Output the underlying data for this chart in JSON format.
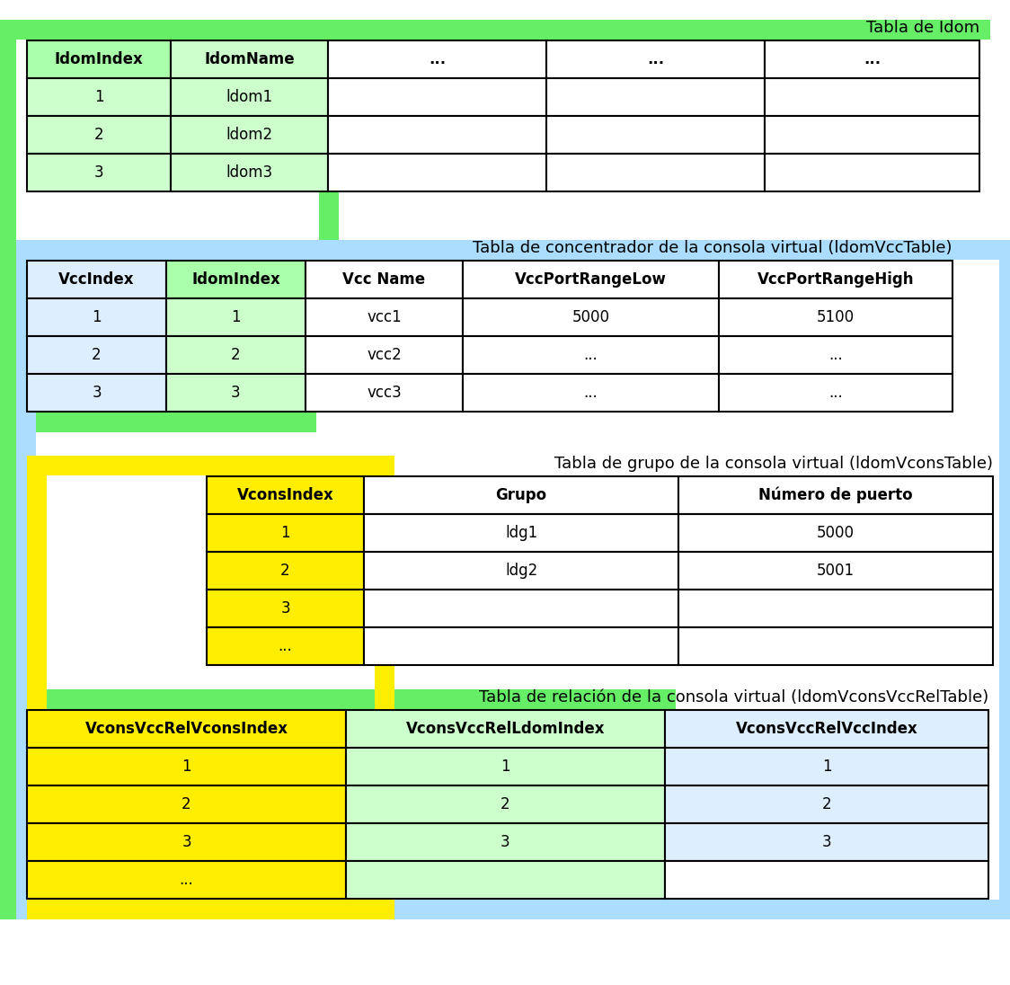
{
  "bg_color": "#ffffff",
  "title_fontsize": 13,
  "cell_fontsize": 12,
  "header_fontsize": 12,
  "table1": {
    "title": "Tabla de Idom",
    "headers": [
      "IdomIndex",
      "IdomName",
      "...",
      "...",
      "..."
    ],
    "header_bg": "#aaffaa",
    "rows": [
      [
        "1",
        "ldom1",
        "",
        "",
        ""
      ],
      [
        "2",
        "ldom2",
        "",
        "",
        ""
      ],
      [
        "3",
        "ldom3",
        "",
        "",
        ""
      ]
    ],
    "col_colors": [
      "#aaffaa",
      "#ccffcc",
      "#ffffff",
      "#ffffff",
      "#ffffff"
    ],
    "row_col_colors": [
      [
        "#ccffcc",
        "#ccffcc",
        "#ffffff",
        "#ffffff",
        "#ffffff"
      ],
      [
        "#ccffcc",
        "#ccffcc",
        "#ffffff",
        "#ffffff",
        "#ffffff"
      ],
      [
        "#ccffcc",
        "#ccffcc",
        "#ffffff",
        "#ffffff",
        "#ffffff"
      ]
    ]
  },
  "table2": {
    "title": "Tabla de concentrador de la consola virtual (ldomVccTable)",
    "headers": [
      "VccIndex",
      "IdomIndex",
      "Vcc Name",
      "VccPortRangeLow",
      "VccPortRangeHigh"
    ],
    "header_bg": "#ddeeff",
    "rows": [
      [
        "1",
        "1",
        "vcc1",
        "5000",
        "5100"
      ],
      [
        "2",
        "2",
        "vcc2",
        "...",
        "..."
      ],
      [
        "3",
        "3",
        "vcc3",
        "...",
        "..."
      ]
    ],
    "row_col_colors": [
      [
        "#ddeeff",
        "#ccffcc",
        "#ffffff",
        "#ffffff",
        "#ffffff"
      ],
      [
        "#ddeeff",
        "#ccffcc",
        "#ffffff",
        "#ffffff",
        "#ffffff"
      ],
      [
        "#ddeeff",
        "#ccffcc",
        "#ffffff",
        "#ffffff",
        "#ffffff"
      ]
    ]
  },
  "table3": {
    "title": "Tabla de grupo de la consola virtual (ldomVconsTable)",
    "headers": [
      "VconsIndex",
      "Grupo",
      "Número de puerto"
    ],
    "header_bg": "#ffee00",
    "rows": [
      [
        "1",
        "ldg1",
        "5000"
      ],
      [
        "2",
        "ldg2",
        "5001"
      ],
      [
        "3",
        "",
        ""
      ],
      [
        "...",
        "",
        ""
      ]
    ],
    "row_col_colors": [
      [
        "#ffee00",
        "#ffffff",
        "#ffffff"
      ],
      [
        "#ffee00",
        "#ffffff",
        "#ffffff"
      ],
      [
        "#ffee00",
        "#ffffff",
        "#ffffff"
      ],
      [
        "#ffee00",
        "#ffffff",
        "#ffffff"
      ]
    ]
  },
  "table4": {
    "title": "Tabla de relación de la consola virtual (ldomVconsVccRelTable)",
    "headers": [
      "VconsVccRelVconsIndex",
      "VconsVccRelLdomIndex",
      "VconsVccRelVccIndex"
    ],
    "header_bg": "#ffee00",
    "rows": [
      [
        "1",
        "1",
        "1"
      ],
      [
        "2",
        "2",
        "2"
      ],
      [
        "3",
        "3",
        "3"
      ],
      [
        "...",
        "",
        ""
      ]
    ],
    "row_col_colors": [
      [
        "#ffee00",
        "#ccffcc",
        "#ddeeff"
      ],
      [
        "#ffee00",
        "#ccffcc",
        "#ddeeff"
      ],
      [
        "#ffee00",
        "#ccffcc",
        "#ddeeff"
      ],
      [
        "#ffee00",
        "#ccffcc",
        "#ffffff"
      ]
    ]
  },
  "green_color": "#66ee66",
  "blue_color": "#aaddff",
  "yellow_color": "#ffee00"
}
